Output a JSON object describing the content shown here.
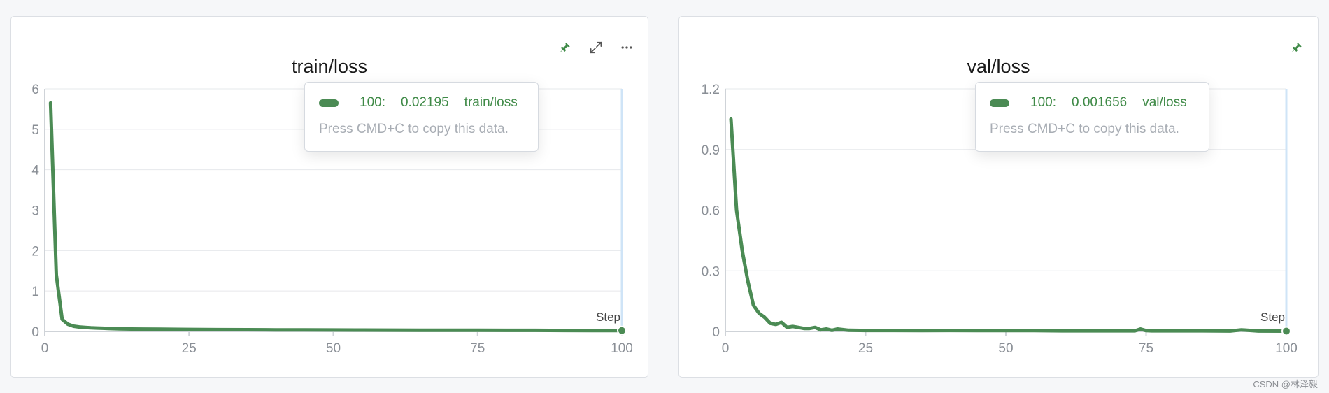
{
  "panels": [
    {
      "title": "train/loss",
      "tooltip": {
        "step": "100:",
        "value": "0.02195",
        "series": "train/loss",
        "hint": "Press CMD+C to copy this data."
      },
      "icons": [
        "pin-icon",
        "expand-icon",
        "more-icon"
      ]
    },
    {
      "title": "val/loss",
      "tooltip": {
        "step": "100:",
        "value": "0.001656",
        "series": "val/loss",
        "hint": "Press CMD+C to copy this data."
      },
      "icons": [
        "pin-icon"
      ]
    }
  ],
  "colors": {
    "series": "#4b8b54",
    "grid": "#e6e8eb",
    "axis": "#cfd3d8",
    "tick": "#8a8f96",
    "hover_line": "#cfe4f7"
  },
  "watermark": "CSDN @林泽毅",
  "chart_data": [
    {
      "type": "line",
      "title": "train/loss",
      "xlabel": "Step",
      "xlim": [
        0,
        100
      ],
      "ylim": [
        0,
        6
      ],
      "xticks": [
        0,
        25,
        50,
        75,
        100
      ],
      "yticks": [
        0,
        1,
        2,
        3,
        4,
        5,
        6
      ],
      "ytick_labels": [
        "0",
        "1",
        "2",
        "3",
        "4",
        "5",
        "6"
      ],
      "grid": true,
      "series": [
        {
          "name": "train/loss",
          "x": [
            1,
            2,
            3,
            4,
            5,
            6,
            7,
            8,
            9,
            10,
            11,
            12,
            13,
            15,
            17,
            20,
            25,
            30,
            35,
            40,
            45,
            50,
            55,
            60,
            65,
            70,
            75,
            80,
            85,
            90,
            95,
            100
          ],
          "y": [
            5.65,
            1.4,
            0.3,
            0.18,
            0.13,
            0.11,
            0.1,
            0.09,
            0.085,
            0.08,
            0.075,
            0.07,
            0.065,
            0.06,
            0.058,
            0.055,
            0.05,
            0.045,
            0.043,
            0.04,
            0.038,
            0.036,
            0.034,
            0.032,
            0.031,
            0.03,
            0.029,
            0.028,
            0.027,
            0.025,
            0.023,
            0.02195
          ]
        }
      ]
    },
    {
      "type": "line",
      "title": "val/loss",
      "xlabel": "Step",
      "xlim": [
        0,
        100
      ],
      "ylim": [
        0,
        1.2
      ],
      "xticks": [
        0,
        25,
        50,
        75,
        100
      ],
      "yticks": [
        0,
        0.3,
        0.6,
        0.9,
        1.2
      ],
      "ytick_labels": [
        "0",
        "0.3",
        "0.6",
        "0.9",
        "1.2"
      ],
      "grid": true,
      "series": [
        {
          "name": "val/loss",
          "x": [
            1,
            2,
            3,
            4,
            5,
            6,
            7,
            8,
            9,
            10,
            11,
            12,
            13,
            14,
            15,
            16,
            17,
            18,
            19,
            20,
            22,
            25,
            30,
            35,
            40,
            45,
            50,
            55,
            60,
            65,
            70,
            73,
            74,
            75,
            76,
            80,
            85,
            90,
            92,
            95,
            100
          ],
          "y": [
            1.05,
            0.6,
            0.4,
            0.25,
            0.13,
            0.09,
            0.07,
            0.04,
            0.035,
            0.045,
            0.02,
            0.025,
            0.02,
            0.015,
            0.015,
            0.02,
            0.008,
            0.012,
            0.006,
            0.012,
            0.006,
            0.005,
            0.005,
            0.004,
            0.005,
            0.004,
            0.004,
            0.004,
            0.003,
            0.003,
            0.003,
            0.003,
            0.012,
            0.004,
            0.003,
            0.003,
            0.003,
            0.002,
            0.008,
            0.002,
            0.001656
          ]
        }
      ]
    }
  ]
}
